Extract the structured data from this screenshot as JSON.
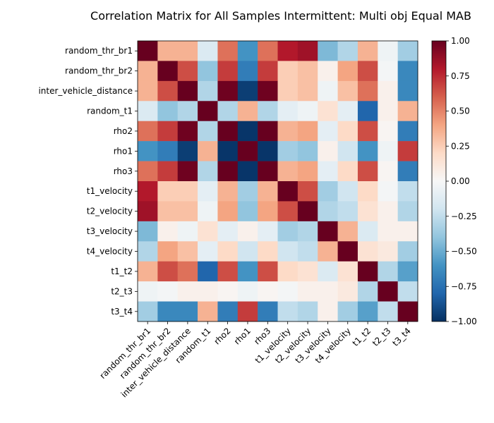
{
  "chart_data": {
    "type": "heatmap",
    "title": "Correlation Matrix for All Samples Intermittent: Multi obj Equal MAB",
    "xlabel": "",
    "ylabel": "",
    "labels": [
      "random_thr_br1",
      "random_thr_br2",
      "inter_vehicle_distance",
      "random_t1",
      "rho2",
      "rho1",
      "rho3",
      "t1_velocity",
      "t2_velocity",
      "t3_velocity",
      "t4_velocity",
      "t1_t2",
      "t2_t3",
      "t3_t4"
    ],
    "matrix": [
      [
        1.0,
        0.35,
        0.35,
        -0.15,
        0.55,
        -0.6,
        0.55,
        0.8,
        0.85,
        -0.45,
        -0.3,
        0.35,
        -0.05,
        -0.35
      ],
      [
        0.35,
        1.0,
        0.65,
        -0.4,
        0.7,
        -0.7,
        0.7,
        0.25,
        0.3,
        0.05,
        0.4,
        0.65,
        -0.02,
        -0.65
      ],
      [
        0.35,
        0.65,
        1.0,
        -0.3,
        0.98,
        -0.95,
        0.98,
        0.25,
        0.3,
        -0.05,
        0.3,
        0.55,
        0.05,
        -0.65
      ],
      [
        -0.15,
        -0.4,
        -0.3,
        1.0,
        -0.3,
        0.35,
        -0.3,
        -0.1,
        -0.05,
        0.15,
        -0.1,
        -0.8,
        0.05,
        0.35
      ],
      [
        0.55,
        0.7,
        0.98,
        -0.3,
        1.0,
        -0.98,
        1.0,
        0.35,
        0.4,
        -0.1,
        0.2,
        0.65,
        0.02,
        -0.7
      ],
      [
        -0.6,
        -0.7,
        -0.95,
        0.35,
        -0.98,
        1.0,
        -0.98,
        -0.35,
        -0.4,
        0.05,
        -0.2,
        -0.6,
        -0.05,
        0.7
      ],
      [
        0.55,
        0.7,
        0.98,
        -0.3,
        1.0,
        -0.98,
        1.0,
        0.35,
        0.4,
        -0.1,
        0.2,
        0.65,
        0.02,
        -0.7
      ],
      [
        0.8,
        0.25,
        0.25,
        -0.1,
        0.35,
        -0.35,
        0.35,
        1.0,
        0.65,
        -0.35,
        -0.2,
        0.2,
        -0.02,
        -0.25
      ],
      [
        0.85,
        0.3,
        0.3,
        -0.05,
        0.4,
        -0.4,
        0.4,
        0.65,
        1.0,
        -0.3,
        -0.25,
        0.15,
        0.05,
        -0.3
      ],
      [
        -0.45,
        0.05,
        -0.05,
        0.15,
        -0.1,
        0.05,
        -0.1,
        -0.35,
        -0.3,
        1.0,
        0.35,
        -0.15,
        0.05,
        0.05
      ],
      [
        -0.3,
        0.4,
        0.3,
        -0.1,
        0.2,
        -0.2,
        0.2,
        -0.2,
        -0.25,
        0.35,
        1.0,
        0.15,
        0.1,
        -0.35
      ],
      [
        0.35,
        0.65,
        0.55,
        -0.8,
        0.65,
        -0.6,
        0.65,
        0.2,
        0.15,
        -0.15,
        0.15,
        1.0,
        -0.3,
        -0.55
      ],
      [
        -0.05,
        -0.02,
        0.05,
        0.05,
        0.02,
        -0.05,
        0.02,
        -0.02,
        0.05,
        0.05,
        0.1,
        -0.3,
        1.0,
        -0.25
      ],
      [
        -0.35,
        -0.65,
        -0.65,
        0.35,
        -0.7,
        0.7,
        -0.7,
        -0.25,
        -0.3,
        0.05,
        -0.35,
        -0.55,
        -0.25,
        1.0
      ]
    ],
    "colorbar": {
      "colormap": "RdBu_r",
      "range": [
        -1.0,
        1.0
      ],
      "ticks": [
        -1.0,
        -0.75,
        -0.5,
        -0.25,
        0.0,
        0.25,
        0.5,
        0.75,
        1.0
      ],
      "tick_labels": [
        "−1.00",
        "−0.75",
        "−0.50",
        "−0.25",
        "0.00",
        "0.25",
        "0.50",
        "0.75",
        "1.00"
      ]
    },
    "grid": false
  }
}
